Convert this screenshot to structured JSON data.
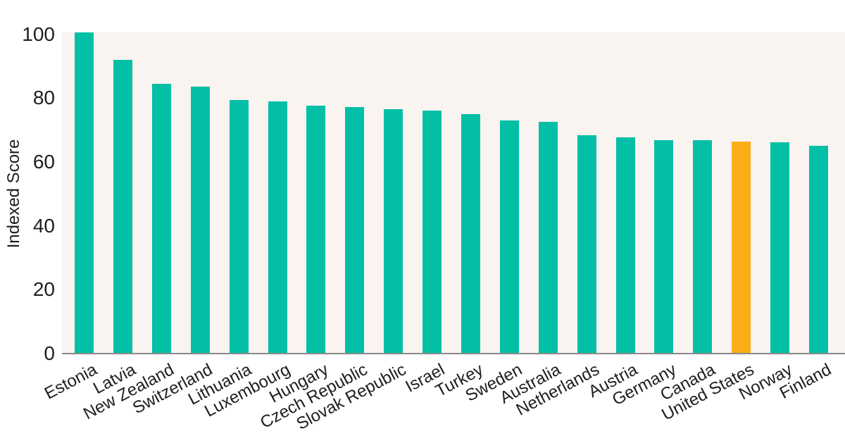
{
  "chart_data": {
    "type": "bar",
    "title": "",
    "xlabel": "",
    "ylabel": "Indexed Score",
    "ylim": [
      0,
      100.5
    ],
    "yticks": [
      0,
      20,
      40,
      60,
      80,
      100
    ],
    "ytick_labels": [
      "0",
      "20",
      "40",
      "60",
      "80",
      "100"
    ],
    "grid": false,
    "legend_position": "none",
    "categories": [
      "Estonia",
      "Latvia",
      "New Zealand",
      "Switzerland",
      "Lithuania",
      "Luxembourg",
      "Hungary",
      "Czech Republic",
      "Slovak Republic",
      "Israel",
      "Turkey",
      "Sweden",
      "Australia",
      "Netherlands",
      "Austria",
      "Germany",
      "Canada",
      "United States",
      "Norway",
      "Finland"
    ],
    "values": [
      100.5,
      92.1,
      84.5,
      83.6,
      79.4,
      79.0,
      77.6,
      77.3,
      76.5,
      76.2,
      74.9,
      73.1,
      72.5,
      68.4,
      67.7,
      66.9,
      66.8,
      66.5,
      66.2,
      65.1
    ],
    "highlight_category": "United States",
    "colors": {
      "bar": "#02bfa6",
      "highlight_bar": "#fbad17",
      "plot_background": "#faf4f1",
      "axis_line": "#8a8a8a",
      "text": "#1e1e1e"
    }
  }
}
